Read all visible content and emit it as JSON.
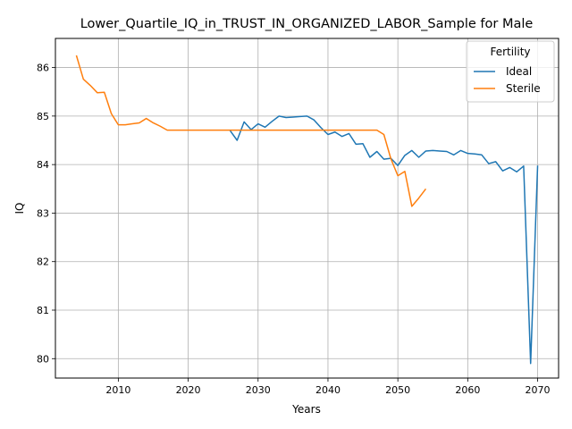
{
  "chart_data": {
    "type": "line",
    "title": "Lower_Quartile_IQ_in_TRUST_IN_ORGANIZED_LABOR_Sample for Male",
    "xlabel": "Years",
    "ylabel": "IQ",
    "xlim": [
      2001,
      2073
    ],
    "ylim": [
      79.6,
      86.6
    ],
    "xticks": [
      2010,
      2020,
      2030,
      2040,
      2050,
      2060,
      2070
    ],
    "yticks": [
      80,
      81,
      82,
      83,
      84,
      85,
      86
    ],
    "grid": true,
    "legend": {
      "title": "Fertility",
      "placement": "top-right"
    },
    "series": [
      {
        "name": "Ideal",
        "color": "#1f77b4",
        "x": [
          2026,
          2027,
          2028,
          2029,
          2030,
          2031,
          2032,
          2033,
          2034,
          2035,
          2036,
          2037,
          2038,
          2039,
          2040,
          2041,
          2042,
          2043,
          2044,
          2045,
          2046,
          2047,
          2048,
          2049,
          2050,
          2051,
          2052,
          2053,
          2054,
          2055,
          2056,
          2057,
          2058,
          2059,
          2060,
          2061,
          2062,
          2063,
          2064,
          2065,
          2066,
          2067,
          2068,
          2069,
          2070
        ],
        "values": [
          84.7,
          84.5,
          84.88,
          84.72,
          84.84,
          84.77,
          84.89,
          85.0,
          84.97,
          84.98,
          84.99,
          85.0,
          84.92,
          84.76,
          84.62,
          84.67,
          84.58,
          84.64,
          84.42,
          84.43,
          84.15,
          84.27,
          84.11,
          84.13,
          83.98,
          84.19,
          84.29,
          84.15,
          84.28,
          84.29,
          84.28,
          84.27,
          84.2,
          84.29,
          84.23,
          84.22,
          84.2,
          84.02,
          84.06,
          83.87,
          83.94,
          83.85,
          83.97,
          79.9,
          83.98
        ]
      },
      {
        "name": "Sterile",
        "color": "#ff7f0e",
        "x": [
          2004,
          2005,
          2006,
          2007,
          2008,
          2009,
          2010,
          2011,
          2012,
          2013,
          2014,
          2015,
          2016,
          2017,
          2018,
          2020,
          2025,
          2030,
          2035,
          2040,
          2045,
          2047,
          2048,
          2049,
          2050,
          2051,
          2052,
          2053,
          2054
        ],
        "values": [
          86.25,
          85.76,
          85.63,
          85.48,
          85.49,
          85.05,
          84.82,
          84.82,
          84.84,
          84.86,
          84.95,
          84.86,
          84.79,
          84.71,
          84.71,
          84.71,
          84.71,
          84.71,
          84.71,
          84.71,
          84.71,
          84.71,
          84.62,
          84.12,
          83.77,
          83.86,
          83.14,
          83.31,
          83.5
        ]
      }
    ]
  }
}
